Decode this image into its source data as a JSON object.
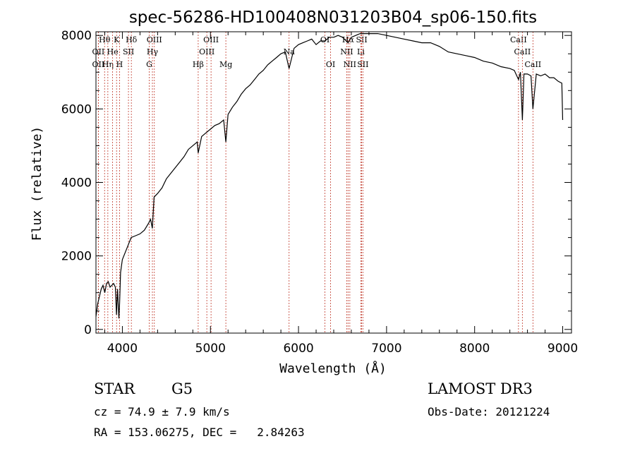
{
  "chart_data": {
    "type": "line",
    "title": "spec-56286-HD100408N031203B04_sp06-150.fits",
    "xlabel": "Wavelength (Å)",
    "ylabel": "Flux (relative)",
    "xlim": [
      3700,
      9100
    ],
    "ylim": [
      -100,
      8100
    ],
    "xticks": [
      4000,
      5000,
      6000,
      7000,
      8000,
      9000
    ],
    "yticks": [
      0,
      2000,
      4000,
      6000,
      8000
    ],
    "spectrum": {
      "x": [
        3700,
        3720,
        3740,
        3760,
        3780,
        3800,
        3820,
        3840,
        3860,
        3880,
        3900,
        3920,
        3933,
        3945,
        3960,
        3968,
        3980,
        4000,
        4050,
        4100,
        4150,
        4200,
        4250,
        4300,
        4320,
        4340,
        4360,
        4400,
        4450,
        4500,
        4550,
        4600,
        4650,
        4700,
        4750,
        4800,
        4850,
        4861,
        4900,
        4950,
        5000,
        5050,
        5100,
        5150,
        5175,
        5200,
        5250,
        5300,
        5350,
        5400,
        5450,
        5500,
        5550,
        5600,
        5650,
        5700,
        5750,
        5800,
        5850,
        5893,
        5950,
        6000,
        6050,
        6100,
        6150,
        6200,
        6250,
        6300,
        6350,
        6400,
        6450,
        6500,
        6563,
        6600,
        6650,
        6700,
        6750,
        6800,
        6900,
        7000,
        7100,
        7200,
        7300,
        7400,
        7500,
        7600,
        7700,
        7800,
        7900,
        8000,
        8100,
        8200,
        8300,
        8400,
        8450,
        8498,
        8520,
        8542,
        8560,
        8600,
        8640,
        8662,
        8700,
        8750,
        8800,
        8850,
        8900,
        8950,
        8990,
        9000
      ],
      "y": [
        350,
        700,
        900,
        1100,
        1200,
        1000,
        1250,
        1300,
        1150,
        1200,
        1250,
        1150,
        400,
        1100,
        300,
        700,
        1550,
        1900,
        2200,
        2500,
        2550,
        2600,
        2700,
        2900,
        3000,
        2750,
        3600,
        3700,
        3850,
        4100,
        4250,
        4400,
        4550,
        4700,
        4900,
        5000,
        5100,
        4800,
        5250,
        5350,
        5450,
        5550,
        5600,
        5700,
        5100,
        5850,
        6050,
        6200,
        6400,
        6550,
        6650,
        6800,
        6950,
        7050,
        7200,
        7300,
        7400,
        7500,
        7550,
        7100,
        7650,
        7750,
        7800,
        7850,
        7900,
        7750,
        7850,
        7850,
        7950,
        7950,
        8000,
        7950,
        7800,
        7950,
        8000,
        8050,
        8050,
        8050,
        8050,
        8000,
        7950,
        7900,
        7850,
        7800,
        7800,
        7700,
        7550,
        7500,
        7450,
        7400,
        7300,
        7250,
        7150,
        7100,
        7050,
        6800,
        7000,
        5700,
        6950,
        6950,
        6900,
        6000,
        6950,
        6900,
        6950,
        6850,
        6850,
        6750,
        6700,
        5700
      ]
    },
    "line_markers": [
      {
        "label": "Hθ",
        "x": 3798,
        "row": 1
      },
      {
        "label": "OII",
        "x": 3727,
        "row": 2
      },
      {
        "label": "OII",
        "x": 3727,
        "row": 3
      },
      {
        "label": "Hη",
        "x": 3835,
        "row": 3
      },
      {
        "label": "K",
        "x": 3934,
        "row": 1
      },
      {
        "label": "He",
        "x": 3889,
        "row": 2
      },
      {
        "label": "H",
        "x": 3968,
        "row": 3
      },
      {
        "label": "SII",
        "x": 4069,
        "row": 2
      },
      {
        "label": "Hδ",
        "x": 4102,
        "row": 1
      },
      {
        "label": "OIII",
        "x": 4363,
        "row": 1
      },
      {
        "label": "Hγ",
        "x": 4341,
        "row": 2
      },
      {
        "label": "G",
        "x": 4305,
        "row": 3
      },
      {
        "label": "Hβ",
        "x": 4861,
        "row": 3
      },
      {
        "label": "OIII",
        "x": 5007,
        "row": 1
      },
      {
        "label": "OIII",
        "x": 4959,
        "row": 2
      },
      {
        "label": "Mg",
        "x": 5175,
        "row": 3
      },
      {
        "label": "Na",
        "x": 5893,
        "row": 2
      },
      {
        "label": "OI",
        "x": 6300,
        "row": 1
      },
      {
        "label": "OI",
        "x": 6364,
        "row": 3
      },
      {
        "label": "Hα",
        "x": 6563,
        "row": 1
      },
      {
        "label": "NII",
        "x": 6548,
        "row": 2
      },
      {
        "label": "NII",
        "x": 6583,
        "row": 3
      },
      {
        "label": "SII",
        "x": 6717,
        "row": 1
      },
      {
        "label": "Li",
        "x": 6708,
        "row": 2
      },
      {
        "label": "SII",
        "x": 6731,
        "row": 3
      },
      {
        "label": "CaII",
        "x": 8498,
        "row": 1
      },
      {
        "label": "CaII",
        "x": 8542,
        "row": 2
      },
      {
        "label": "CaII",
        "x": 8662,
        "row": 3
      }
    ]
  },
  "info": {
    "class": "STAR",
    "subclass": "G5",
    "survey": "LAMOST DR3",
    "cz": "cz = 74.9 ± 7.9 km/s",
    "obs_date": "Obs-Date: 20121224",
    "coords": "RA = 153.06275, DEC =   2.84263"
  }
}
